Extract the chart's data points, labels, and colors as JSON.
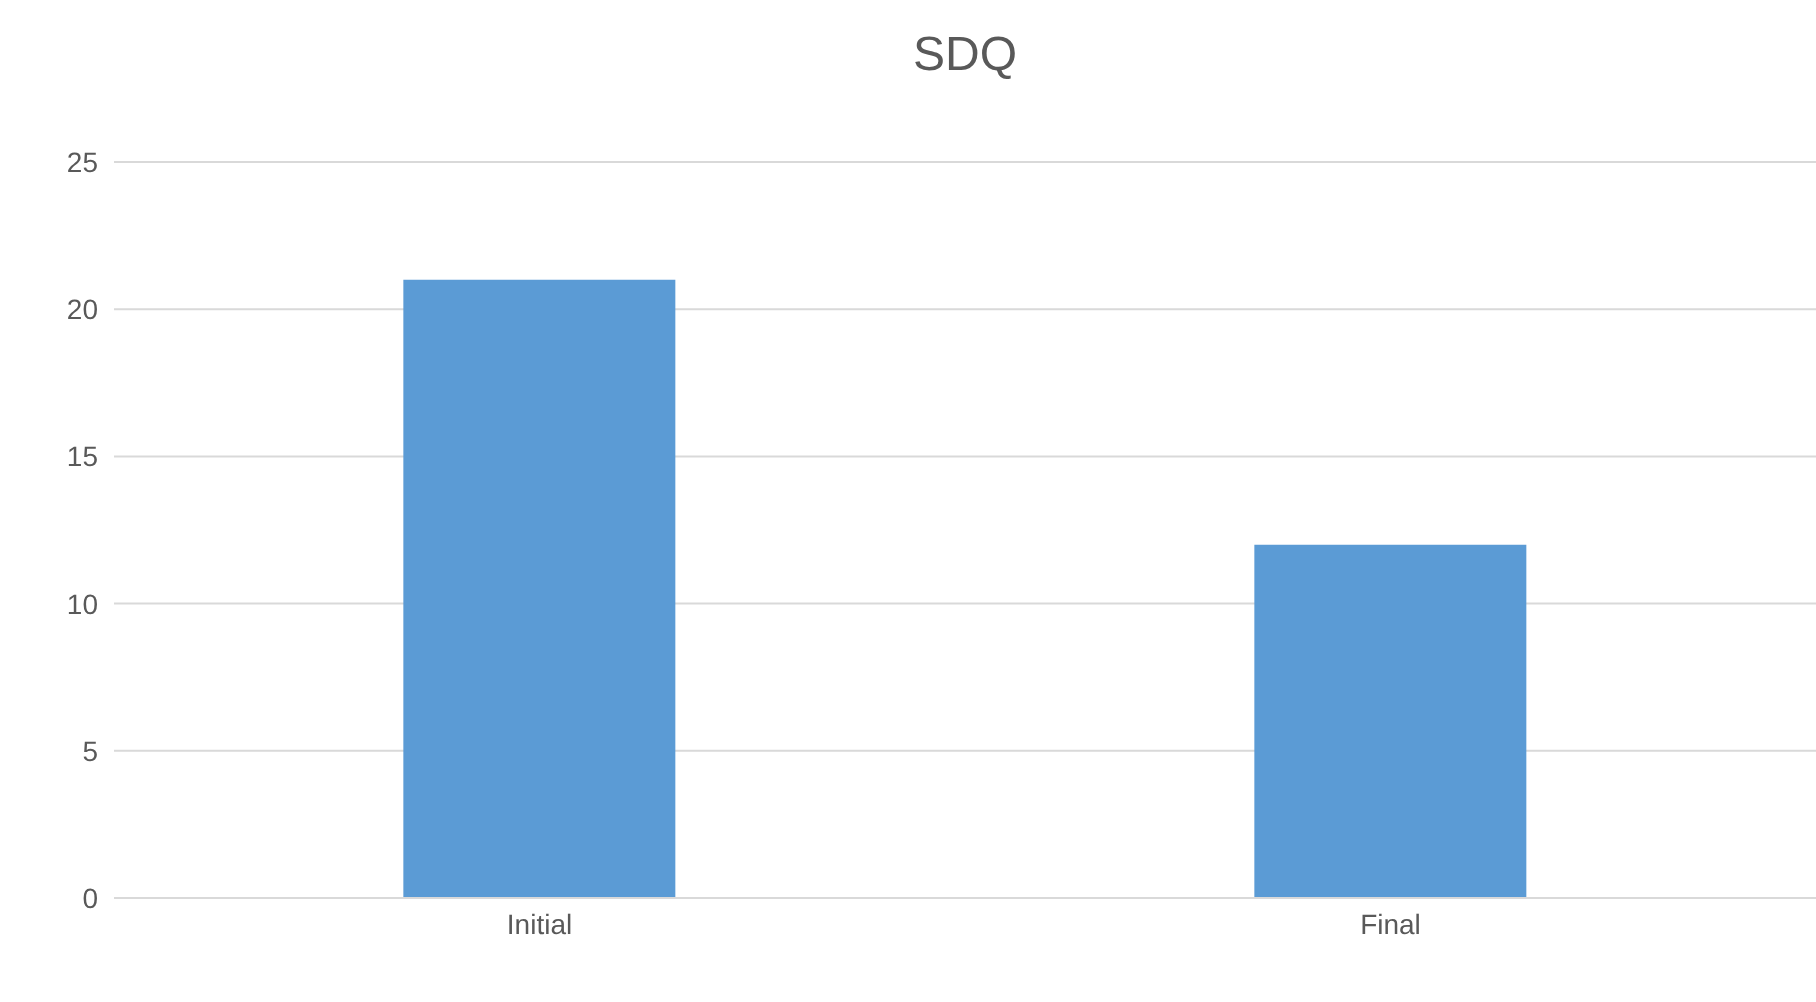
{
  "chart_data": {
    "type": "bar",
    "title": "SDQ",
    "categories": [
      "Initial",
      "Final"
    ],
    "values": [
      21,
      12
    ],
    "color": "#5b9bd5",
    "ylim": [
      0,
      25
    ],
    "yticks": [
      0,
      5,
      10,
      15,
      20,
      25
    ],
    "grid": "y"
  }
}
